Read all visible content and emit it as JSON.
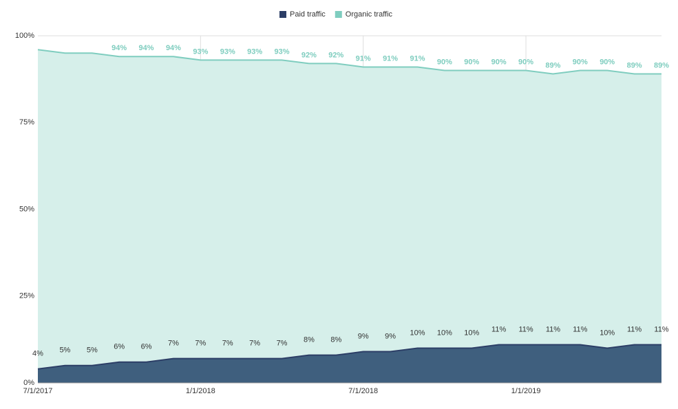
{
  "chart_data": {
    "type": "area",
    "categories": [
      "7/1/2017",
      null,
      null,
      null,
      null,
      null,
      "1/1/2018",
      null,
      null,
      null,
      null,
      null,
      "7/1/2018",
      null,
      null,
      null,
      null,
      null,
      "1/1/2019",
      null,
      null,
      null,
      null,
      null
    ],
    "series": [
      {
        "name": "Organic traffic",
        "color": "#7fcdbf",
        "fill": "#d6efea",
        "values": [
          96,
          95,
          95,
          94,
          94,
          94,
          93,
          93,
          93,
          93,
          92,
          92,
          91,
          91,
          91,
          90,
          90,
          90,
          90,
          89,
          90,
          90,
          89,
          89
        ],
        "value_labels": [
          null,
          null,
          null,
          "94%",
          "94%",
          "94%",
          "93%",
          "93%",
          "93%",
          "93%",
          "92%",
          "92%",
          "91%",
          "91%",
          "91%",
          "90%",
          "90%",
          "90%",
          "90%",
          "89%",
          "90%",
          "90%",
          "89%",
          "89%"
        ]
      },
      {
        "name": "Paid traffic",
        "color": "#2c3e66",
        "fill": "#3f5f7e",
        "values": [
          4,
          5,
          5,
          6,
          6,
          7,
          7,
          7,
          7,
          7,
          8,
          8,
          9,
          9,
          10,
          10,
          10,
          11,
          11,
          11,
          11,
          10,
          11,
          11
        ],
        "value_labels": [
          "4%",
          "5%",
          "5%",
          "6%",
          "6%",
          "7%",
          "7%",
          "7%",
          "7%",
          "7%",
          "8%",
          "8%",
          "9%",
          "9%",
          "10%",
          "10%",
          "10%",
          "11%",
          "11%",
          "11%",
          "11%",
          "10%",
          "11%",
          "11%"
        ]
      }
    ],
    "ylim": [
      0,
      100
    ],
    "yticks": [
      {
        "value": 0,
        "label": "0%"
      },
      {
        "value": 25,
        "label": "25%"
      },
      {
        "value": 50,
        "label": "50%"
      },
      {
        "value": 75,
        "label": "75%"
      },
      {
        "value": 100,
        "label": "100%"
      }
    ],
    "grid": true,
    "legend": "top"
  }
}
